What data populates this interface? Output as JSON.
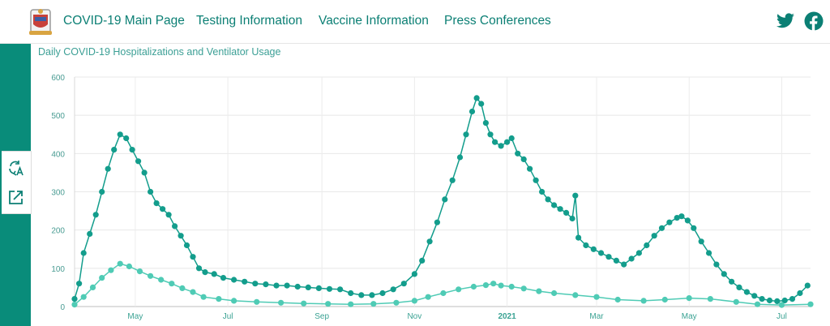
{
  "header": {
    "nav": [
      "COVID-19 Main Page",
      "Testing Information",
      "Vaccine Information",
      "Press Conferences"
    ],
    "social_icons": [
      "twitter-icon",
      "facebook-icon"
    ],
    "logo_icon": "seal-logo-icon"
  },
  "sidebar": {
    "tools": [
      "translate-icon",
      "share-icon"
    ]
  },
  "colors": {
    "accent": "#0b7f74",
    "sidebar": "#098c7a",
    "hospitalized": "#139d8c",
    "ventilator": "#4fcbb5"
  },
  "chart_data": {
    "type": "line",
    "title": "Daily COVID-19 Hospitalizations and Ventilator Usage",
    "ylim": [
      0,
      600
    ],
    "yticks": [
      0,
      100,
      200,
      300,
      400,
      500,
      600
    ],
    "x_range": [
      "2020-03-22",
      "2021-07-20"
    ],
    "xticks": [
      {
        "date": "2020-05-01",
        "label": "May",
        "bold": false
      },
      {
        "date": "2020-07-01",
        "label": "Jul",
        "bold": false
      },
      {
        "date": "2020-09-01",
        "label": "Sep",
        "bold": false
      },
      {
        "date": "2020-11-01",
        "label": "Nov",
        "bold": false
      },
      {
        "date": "2021-01-01",
        "label": "2021",
        "bold": true
      },
      {
        "date": "2021-03-01",
        "label": "Mar",
        "bold": false
      },
      {
        "date": "2021-05-01",
        "label": "May",
        "bold": false
      },
      {
        "date": "2021-07-01",
        "label": "Jul",
        "bold": false
      }
    ],
    "grid": true,
    "series": [
      {
        "key": "hospitalized",
        "color": "#139d8c",
        "points": [
          [
            "2020-03-22",
            20
          ],
          [
            "2020-03-25",
            60
          ],
          [
            "2020-03-28",
            140
          ],
          [
            "2020-04-01",
            190
          ],
          [
            "2020-04-05",
            240
          ],
          [
            "2020-04-09",
            300
          ],
          [
            "2020-04-13",
            360
          ],
          [
            "2020-04-17",
            410
          ],
          [
            "2020-04-21",
            450
          ],
          [
            "2020-04-25",
            440
          ],
          [
            "2020-04-29",
            410
          ],
          [
            "2020-05-03",
            380
          ],
          [
            "2020-05-07",
            350
          ],
          [
            "2020-05-11",
            300
          ],
          [
            "2020-05-15",
            270
          ],
          [
            "2020-05-19",
            255
          ],
          [
            "2020-05-23",
            240
          ],
          [
            "2020-05-27",
            210
          ],
          [
            "2020-05-31",
            185
          ],
          [
            "2020-06-04",
            160
          ],
          [
            "2020-06-08",
            130
          ],
          [
            "2020-06-12",
            100
          ],
          [
            "2020-06-16",
            90
          ],
          [
            "2020-06-22",
            85
          ],
          [
            "2020-06-28",
            75
          ],
          [
            "2020-07-05",
            70
          ],
          [
            "2020-07-12",
            65
          ],
          [
            "2020-07-19",
            60
          ],
          [
            "2020-07-26",
            58
          ],
          [
            "2020-08-02",
            55
          ],
          [
            "2020-08-09",
            55
          ],
          [
            "2020-08-16",
            52
          ],
          [
            "2020-08-23",
            50
          ],
          [
            "2020-08-30",
            48
          ],
          [
            "2020-09-06",
            46
          ],
          [
            "2020-09-13",
            45
          ],
          [
            "2020-09-20",
            35
          ],
          [
            "2020-09-27",
            30
          ],
          [
            "2020-10-04",
            30
          ],
          [
            "2020-10-11",
            35
          ],
          [
            "2020-10-18",
            45
          ],
          [
            "2020-10-25",
            60
          ],
          [
            "2020-11-01",
            85
          ],
          [
            "2020-11-06",
            120
          ],
          [
            "2020-11-11",
            170
          ],
          [
            "2020-11-16",
            220
          ],
          [
            "2020-11-21",
            280
          ],
          [
            "2020-11-26",
            330
          ],
          [
            "2020-12-01",
            390
          ],
          [
            "2020-12-05",
            450
          ],
          [
            "2020-12-09",
            510
          ],
          [
            "2020-12-12",
            545
          ],
          [
            "2020-12-15",
            530
          ],
          [
            "2020-12-18",
            480
          ],
          [
            "2020-12-21",
            450
          ],
          [
            "2020-12-24",
            430
          ],
          [
            "2020-12-28",
            420
          ],
          [
            "2021-01-01",
            430
          ],
          [
            "2021-01-04",
            440
          ],
          [
            "2021-01-08",
            400
          ],
          [
            "2021-01-12",
            385
          ],
          [
            "2021-01-16",
            360
          ],
          [
            "2021-01-20",
            330
          ],
          [
            "2021-01-24",
            300
          ],
          [
            "2021-01-28",
            280
          ],
          [
            "2021-02-01",
            265
          ],
          [
            "2021-02-05",
            255
          ],
          [
            "2021-02-09",
            245
          ],
          [
            "2021-02-13",
            230
          ],
          [
            "2021-02-15",
            290
          ],
          [
            "2021-02-17",
            180
          ],
          [
            "2021-02-22",
            160
          ],
          [
            "2021-02-27",
            150
          ],
          [
            "2021-03-04",
            140
          ],
          [
            "2021-03-09",
            130
          ],
          [
            "2021-03-14",
            120
          ],
          [
            "2021-03-19",
            110
          ],
          [
            "2021-03-24",
            125
          ],
          [
            "2021-03-29",
            140
          ],
          [
            "2021-04-03",
            160
          ],
          [
            "2021-04-08",
            185
          ],
          [
            "2021-04-13",
            205
          ],
          [
            "2021-04-18",
            220
          ],
          [
            "2021-04-23",
            232
          ],
          [
            "2021-04-26",
            236
          ],
          [
            "2021-04-30",
            225
          ],
          [
            "2021-05-04",
            205
          ],
          [
            "2021-05-09",
            170
          ],
          [
            "2021-05-14",
            140
          ],
          [
            "2021-05-19",
            110
          ],
          [
            "2021-05-24",
            85
          ],
          [
            "2021-05-29",
            65
          ],
          [
            "2021-06-03",
            50
          ],
          [
            "2021-06-08",
            38
          ],
          [
            "2021-06-13",
            28
          ],
          [
            "2021-06-18",
            20
          ],
          [
            "2021-06-23",
            16
          ],
          [
            "2021-06-28",
            14
          ],
          [
            "2021-07-03",
            16
          ],
          [
            "2021-07-08",
            20
          ],
          [
            "2021-07-13",
            35
          ],
          [
            "2021-07-18",
            55
          ]
        ]
      },
      {
        "key": "ventilator",
        "color": "#4fcbb5",
        "points": [
          [
            "2020-03-22",
            5
          ],
          [
            "2020-03-28",
            25
          ],
          [
            "2020-04-03",
            50
          ],
          [
            "2020-04-09",
            75
          ],
          [
            "2020-04-15",
            95
          ],
          [
            "2020-04-21",
            112
          ],
          [
            "2020-04-27",
            105
          ],
          [
            "2020-05-04",
            92
          ],
          [
            "2020-05-11",
            80
          ],
          [
            "2020-05-18",
            70
          ],
          [
            "2020-05-25",
            60
          ],
          [
            "2020-06-01",
            48
          ],
          [
            "2020-06-08",
            38
          ],
          [
            "2020-06-15",
            25
          ],
          [
            "2020-06-25",
            20
          ],
          [
            "2020-07-05",
            15
          ],
          [
            "2020-07-20",
            12
          ],
          [
            "2020-08-05",
            10
          ],
          [
            "2020-08-20",
            8
          ],
          [
            "2020-09-05",
            7
          ],
          [
            "2020-09-20",
            6
          ],
          [
            "2020-10-05",
            7
          ],
          [
            "2020-10-20",
            10
          ],
          [
            "2020-11-01",
            15
          ],
          [
            "2020-11-10",
            25
          ],
          [
            "2020-11-20",
            35
          ],
          [
            "2020-11-30",
            45
          ],
          [
            "2020-12-10",
            52
          ],
          [
            "2020-12-18",
            56
          ],
          [
            "2020-12-23",
            60
          ],
          [
            "2020-12-28",
            55
          ],
          [
            "2021-01-04",
            52
          ],
          [
            "2021-01-12",
            47
          ],
          [
            "2021-01-22",
            40
          ],
          [
            "2021-02-01",
            35
          ],
          [
            "2021-02-15",
            30
          ],
          [
            "2021-03-01",
            25
          ],
          [
            "2021-03-15",
            18
          ],
          [
            "2021-04-01",
            15
          ],
          [
            "2021-04-15",
            18
          ],
          [
            "2021-05-01",
            22
          ],
          [
            "2021-05-15",
            20
          ],
          [
            "2021-06-01",
            12
          ],
          [
            "2021-06-15",
            6
          ],
          [
            "2021-07-01",
            4
          ],
          [
            "2021-07-20",
            6
          ]
        ]
      }
    ]
  }
}
